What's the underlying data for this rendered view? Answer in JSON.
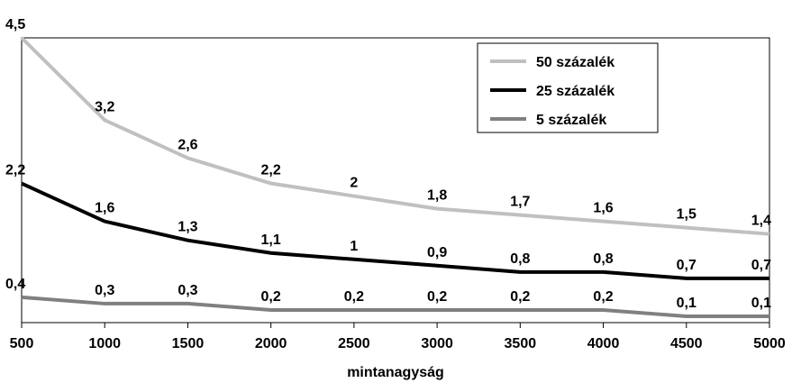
{
  "chart_data": {
    "type": "line",
    "x": [
      500,
      1000,
      1500,
      2000,
      2500,
      3000,
      3500,
      4000,
      4500,
      5000
    ],
    "x_tick_labels": [
      "500",
      "1000",
      "1500",
      "2000",
      "2500",
      "3000",
      "3500",
      "4000",
      "4500",
      "5000"
    ],
    "xlabel": "mintanagyság",
    "ylabel": "",
    "title": "",
    "ylim": [
      0,
      4.5
    ],
    "grid": false,
    "legend_position": "top-right",
    "series": [
      {
        "name": "50 százalék",
        "color": "#c0c0c0",
        "values": [
          4.5,
          3.2,
          2.6,
          2.2,
          2.0,
          1.8,
          1.7,
          1.6,
          1.5,
          1.4
        ],
        "labels": [
          "4,5",
          "3,2",
          "2,6",
          "2,2",
          "2",
          "1,8",
          "1,7",
          "1,6",
          "1,5",
          "1,4"
        ]
      },
      {
        "name": "25 százalék",
        "color": "#000000",
        "values": [
          2.2,
          1.6,
          1.3,
          1.1,
          1.0,
          0.9,
          0.8,
          0.8,
          0.7,
          0.7
        ],
        "labels": [
          "2,2",
          "1,6",
          "1,3",
          "1,1",
          "1",
          "0,9",
          "0,8",
          "0,8",
          "0,7",
          "0,7"
        ]
      },
      {
        "name": "5 százalék",
        "color": "#808080",
        "values": [
          0.4,
          0.3,
          0.3,
          0.2,
          0.2,
          0.2,
          0.2,
          0.2,
          0.1,
          0.1
        ],
        "labels": [
          "0,4",
          "0,3",
          "0,3",
          "0,2",
          "0,2",
          "0,2",
          "0,2",
          "0,2",
          "0,1",
          "0,1"
        ]
      }
    ]
  }
}
